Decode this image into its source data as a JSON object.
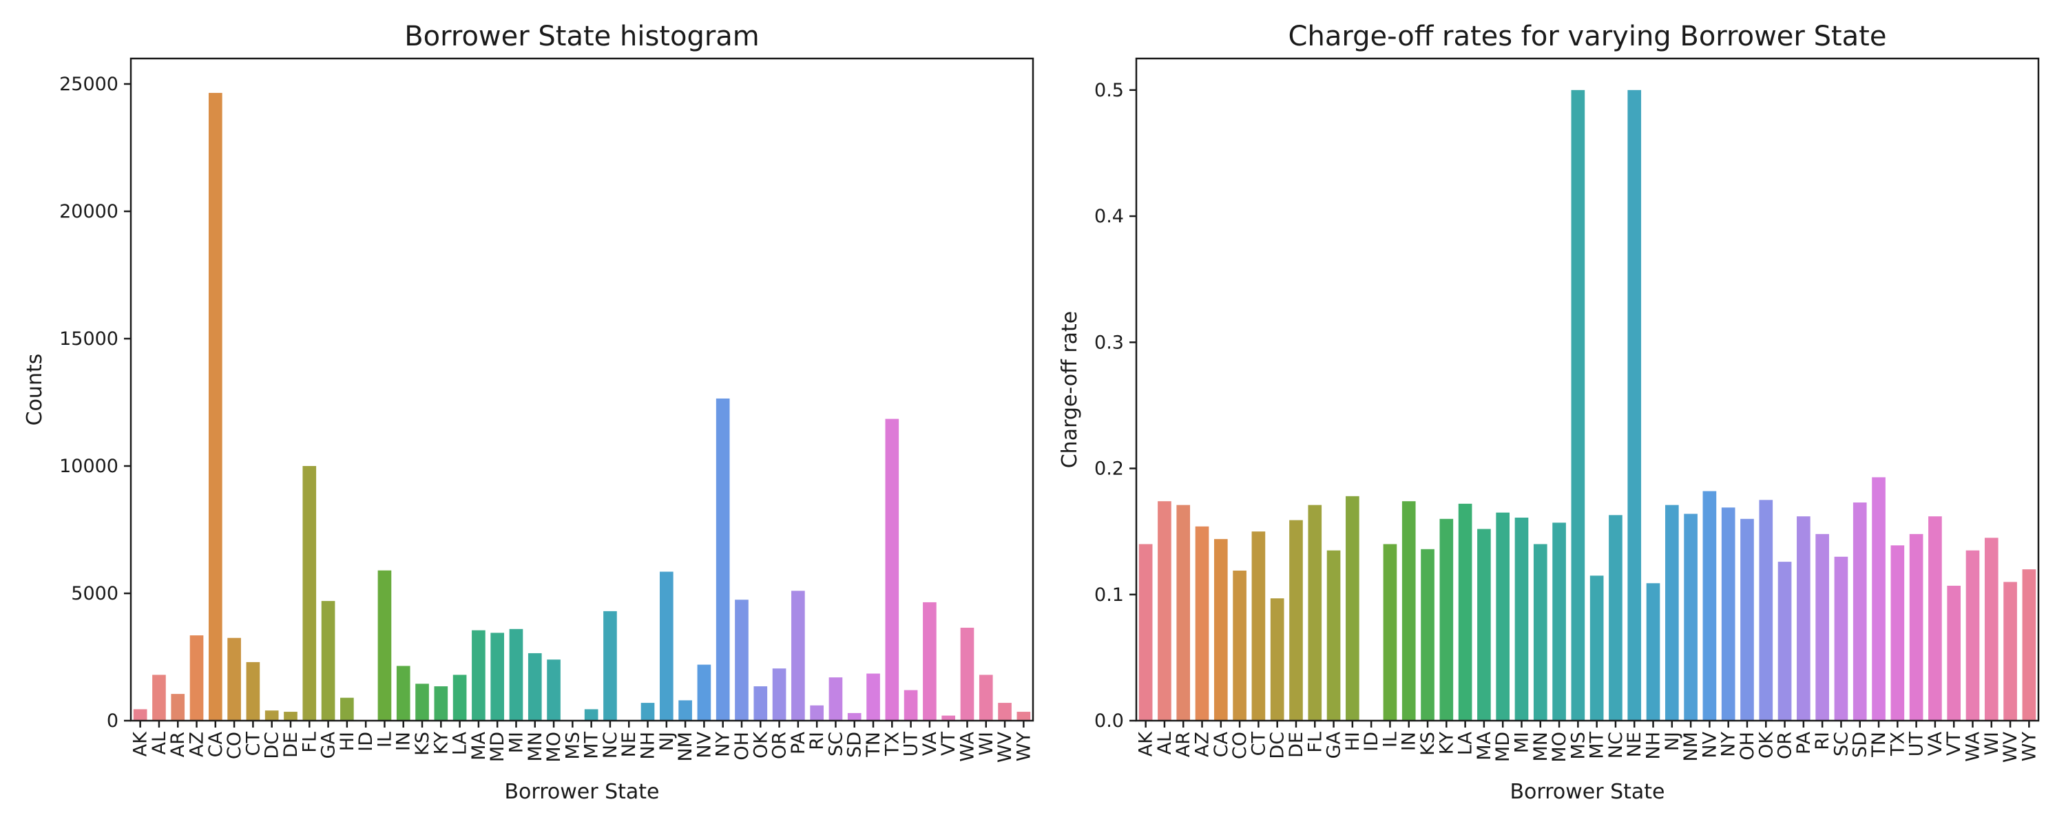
{
  "chart_data": [
    {
      "type": "bar",
      "title": "Borrower State histogram",
      "xlabel": "Borrower State",
      "ylabel": "Counts",
      "ylim": [
        0,
        26000
      ],
      "yticks": [
        0,
        5000,
        10000,
        15000,
        20000,
        25000
      ],
      "grid": false,
      "categories": [
        "AK",
        "AL",
        "AR",
        "AZ",
        "CA",
        "CO",
        "CT",
        "DC",
        "DE",
        "FL",
        "GA",
        "HI",
        "ID",
        "IL",
        "IN",
        "KS",
        "KY",
        "LA",
        "MA",
        "MD",
        "MI",
        "MN",
        "MO",
        "MS",
        "MT",
        "NC",
        "NE",
        "NH",
        "NJ",
        "NM",
        "NV",
        "NY",
        "OH",
        "OK",
        "OR",
        "PA",
        "RI",
        "SC",
        "SD",
        "TN",
        "TX",
        "UT",
        "VA",
        "VT",
        "WA",
        "WI",
        "WV",
        "WY"
      ],
      "values": [
        450,
        1800,
        1050,
        3350,
        24650,
        3250,
        2300,
        400,
        350,
        10000,
        4700,
        900,
        0,
        5900,
        2150,
        1450,
        1350,
        1800,
        3550,
        3450,
        3600,
        2650,
        2400,
        0,
        450,
        4300,
        0,
        700,
        5850,
        800,
        2200,
        12650,
        4750,
        1350,
        2050,
        5100,
        600,
        1700,
        300,
        1850,
        11850,
        1200,
        4650,
        200,
        3650,
        1800,
        700,
        350
      ]
    },
    {
      "type": "bar",
      "title": "Charge-off rates for varying Borrower State",
      "xlabel": "Borrower State",
      "ylabel": "Charge-off rate",
      "ylim": [
        0,
        0.525
      ],
      "yticks": [
        0.0,
        0.1,
        0.2,
        0.3,
        0.4,
        0.5
      ],
      "grid": false,
      "categories": [
        "AK",
        "AL",
        "AR",
        "AZ",
        "CA",
        "CO",
        "CT",
        "DC",
        "DE",
        "FL",
        "GA",
        "HI",
        "ID",
        "IL",
        "IN",
        "KS",
        "KY",
        "LA",
        "MA",
        "MD",
        "MI",
        "MN",
        "MO",
        "MS",
        "MT",
        "NC",
        "NE",
        "NH",
        "NJ",
        "NM",
        "NV",
        "NY",
        "OH",
        "OK",
        "OR",
        "PA",
        "RI",
        "SC",
        "SD",
        "TN",
        "TX",
        "UT",
        "VA",
        "VT",
        "WA",
        "WI",
        "WV",
        "WY"
      ],
      "values": [
        0.14,
        0.174,
        0.171,
        0.154,
        0.144,
        0.119,
        0.15,
        0.097,
        0.159,
        0.171,
        0.135,
        0.178,
        0.0,
        0.14,
        0.174,
        0.136,
        0.16,
        0.172,
        0.152,
        0.165,
        0.161,
        0.14,
        0.157,
        0.5,
        0.115,
        0.163,
        0.5,
        0.109,
        0.171,
        0.164,
        0.182,
        0.169,
        0.16,
        0.175,
        0.126,
        0.162,
        0.148,
        0.13,
        0.173,
        0.193,
        0.139,
        0.148,
        0.162,
        0.107,
        0.135,
        0.145,
        0.11,
        0.12
      ]
    }
  ],
  "palette": [
    "#e8818f",
    "#e78580",
    "#e1886b",
    "#e38a58",
    "#d98d46",
    "#c99442",
    "#bd983f",
    "#b29c3f",
    "#a89f3e",
    "#9ea23e",
    "#93a53e",
    "#88a63e",
    "#7aa83f",
    "#69ab3d",
    "#5cad45",
    "#4eae53",
    "#43ae62",
    "#3aaf73",
    "#39ae82",
    "#38ad8c",
    "#38ab95",
    "#39aa9c",
    "#3aa9a3",
    "#3ba8a9",
    "#3da7b0",
    "#3fa6b6",
    "#41a5bd",
    "#44a3c5",
    "#49a1cd",
    "#509fd5",
    "#5b9ce0",
    "#6a98e4",
    "#7c95e6",
    "#8b92e7",
    "#9a8fe7",
    "#a88be6",
    "#b688e5",
    "#c284e4",
    "#cd81e2",
    "#d77ee0",
    "#dd7ad7",
    "#e07ad0",
    "#e47bc7",
    "#e67cbd",
    "#e87eb2",
    "#e97fa8",
    "#e9809d",
    "#e98194"
  ]
}
